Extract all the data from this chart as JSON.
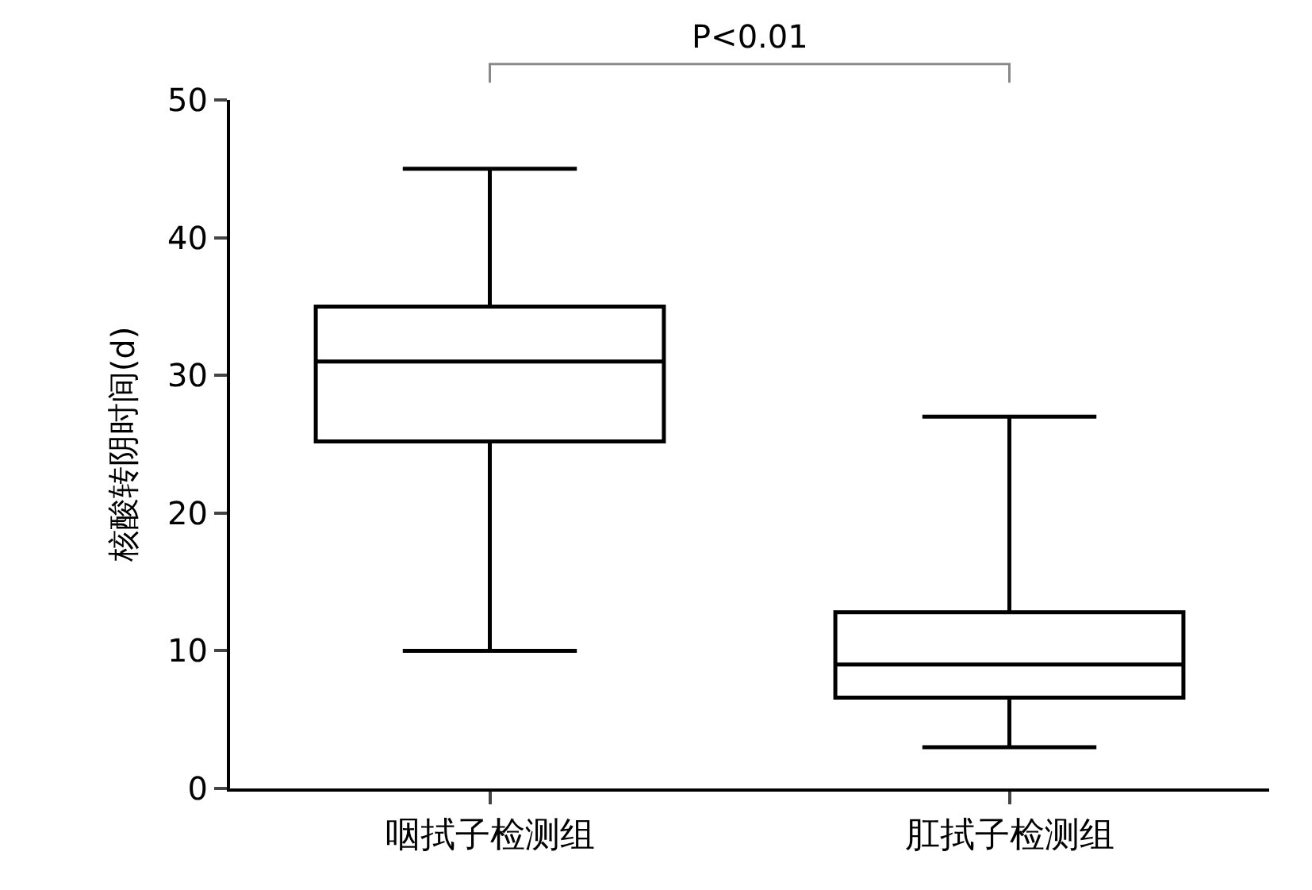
{
  "chart_data": {
    "type": "box",
    "ylabel": "核酸转阴时间(d)",
    "categories": [
      "咽拭子检测组",
      "肛拭子检测组"
    ],
    "boxes": [
      {
        "low": 10,
        "q1": 25.2,
        "median": 31,
        "q3": 35,
        "high": 45
      },
      {
        "low": 3,
        "q1": 6.6,
        "median": 9,
        "q3": 12.8,
        "high": 27
      }
    ],
    "color": "#000000",
    "ylim": [
      0,
      50
    ],
    "yticks": [
      0,
      10,
      20,
      30,
      40,
      50
    ],
    "annotations": [
      "P<0.01"
    ]
  }
}
